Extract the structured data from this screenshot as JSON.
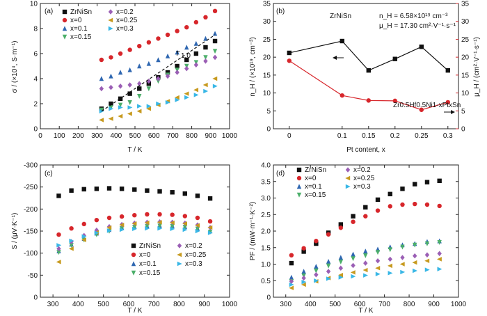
{
  "colors": {
    "ZrNiSn": "#111111",
    "x0": "#d7262b",
    "x01": "#2f67b1",
    "x015": "#4caf6a",
    "x02": "#9b5fb5",
    "x025": "#c79a1f",
    "x03": "#39b7e6",
    "red_axis": "#d7262b"
  },
  "marker_shapes": {
    "ZrNiSn": "square",
    "x0": "circle",
    "x01": "triangle-up",
    "x015": "triangle-down",
    "x02": "diamond",
    "x025": "triangle-left",
    "x03": "triangle-right"
  },
  "chart_data": [
    {
      "panel": "(a)",
      "type": "scatter",
      "ylabel": "σ / (×10⁴, S·m⁻¹)",
      "xlabel": "T / K",
      "xlim": [
        0,
        1000
      ],
      "ylim": [
        0,
        10
      ],
      "xticks": [
        "0",
        "100",
        "200",
        "300",
        "400",
        "500",
        "600",
        "700",
        "800",
        "900",
        "1000"
      ],
      "yticks": [
        "0",
        "2",
        "4",
        "6",
        "8",
        "10"
      ],
      "legend_position": "top-left",
      "annotation": "T",
      "annotation_sub": "1.0",
      "x": [
        323,
        373,
        423,
        473,
        523,
        573,
        623,
        673,
        723,
        773,
        823,
        873,
        923
      ],
      "series": [
        {
          "key": "ZrNiSn",
          "name": "ZrNiSn",
          "values": [
            1.6,
            2.0,
            2.4,
            2.8,
            3.2,
            3.6,
            4.1,
            4.5,
            5.0,
            5.5,
            6.0,
            6.5,
            7.0
          ]
        },
        {
          "key": "x0",
          "name": "x=0",
          "values": [
            5.5,
            5.7,
            6.0,
            6.3,
            6.6,
            6.9,
            7.2,
            7.5,
            7.8,
            8.1,
            8.5,
            8.9,
            9.4
          ]
        },
        {
          "key": "x01",
          "name": "x=0.1",
          "values": [
            4.0,
            4.2,
            4.5,
            4.7,
            5.0,
            5.2,
            5.5,
            5.8,
            6.1,
            6.5,
            6.8,
            7.2,
            7.6
          ]
        },
        {
          "key": "x015",
          "name": "x=0.15",
          "values": [
            1.5,
            1.7,
            1.9,
            2.1,
            2.6,
            3.2,
            3.8,
            4.3,
            4.7,
            5.0,
            5.3,
            5.7,
            6.2
          ]
        },
        {
          "key": "x02",
          "name": "x=0.2",
          "values": [
            3.2,
            3.3,
            3.4,
            3.5,
            3.6,
            3.8,
            4.0,
            4.2,
            4.5,
            4.8,
            5.1,
            5.4,
            5.7
          ]
        },
        {
          "key": "x025",
          "name": "x=0.25",
          "values": [
            0.7,
            0.8,
            1.0,
            1.2,
            1.4,
            1.6,
            1.9,
            2.2,
            2.5,
            2.8,
            3.1,
            3.5,
            4.0
          ]
        },
        {
          "key": "x03",
          "name": "x=0.3",
          "values": [
            1.4,
            1.6,
            1.7,
            1.7,
            1.8,
            1.8,
            2.0,
            2.1,
            2.3,
            2.5,
            2.7,
            3.0,
            3.4
          ]
        }
      ],
      "fit_line": {
        "x": [
          323,
          923
        ],
        "y": [
          1.4,
          7.5
        ]
      }
    },
    {
      "panel": "(b)",
      "type": "line",
      "ylabel": "n_H / (×10¹⁹, cm⁻³)",
      "ylabel_right": "μ_H / (cm²·V⁻¹·s⁻¹)",
      "xlabel": "Pt content, x",
      "xlim": [
        -0.03,
        0.32
      ],
      "ylim": [
        0,
        35
      ],
      "ylim_right": [
        0,
        35
      ],
      "xticks": [
        "0",
        "0.1",
        "0.15",
        "0.2",
        "0.25",
        "0.3"
      ],
      "yticks": [
        "0",
        "5",
        "10",
        "15",
        "20",
        "25",
        "30",
        "35"
      ],
      "categories": [
        0,
        0.1,
        0.15,
        0.2,
        0.25,
        0.3
      ],
      "series": [
        {
          "key": "nH",
          "values": [
            21.2,
            24.5,
            16.3,
            19.5,
            22.9,
            16.3
          ]
        },
        {
          "key": "muH",
          "values": [
            19.0,
            9.3,
            7.9,
            7.8,
            5.3,
            7.4
          ]
        }
      ],
      "reference_lines": {
        "nH": 6.58,
        "muH": 17.3
      },
      "legend_text": {
        "ZrNiSn": "ZrNiSn",
        "nH": "n_H = 6.58×10¹⁹ cm⁻³",
        "muH": "μ_H = 17.30 cm²·V⁻¹·s⁻¹"
      },
      "formula": "Zr0.5Hf0.5Ni1-xPtxSn"
    },
    {
      "panel": "(c)",
      "type": "scatter",
      "ylabel": "S / (μV·K⁻¹)",
      "xlabel": "T / K",
      "xlim": [
        250,
        1000
      ],
      "ylim": [
        0,
        -300
      ],
      "xticks": [
        "300",
        "400",
        "500",
        "600",
        "700",
        "800",
        "900",
        "1000"
      ],
      "yticks": [
        "0",
        "-50",
        "-100",
        "-150",
        "-200",
        "-250",
        "-300"
      ],
      "legend_position": "bottom-right",
      "x": [
        323,
        373,
        423,
        473,
        523,
        573,
        623,
        673,
        723,
        773,
        823,
        873,
        923
      ],
      "series": [
        {
          "key": "ZrNiSn",
          "name": "ZrNiSn",
          "values": [
            -230,
            -242,
            -245,
            -246,
            -247,
            -246,
            -244,
            -242,
            -240,
            -238,
            -235,
            -230,
            -224
          ]
        },
        {
          "key": "x0",
          "name": "x=0",
          "values": [
            -142,
            -156,
            -166,
            -175,
            -180,
            -183,
            -186,
            -188,
            -188,
            -187,
            -184,
            -180,
            -172
          ]
        },
        {
          "key": "x01",
          "name": "x=0.1",
          "values": [
            -105,
            -120,
            -133,
            -145,
            -153,
            -158,
            -160,
            -162,
            -163,
            -162,
            -160,
            -156,
            -150
          ]
        },
        {
          "key": "x015",
          "name": "x=0.15",
          "values": [
            -102,
            -118,
            -130,
            -142,
            -150,
            -156,
            -159,
            -161,
            -162,
            -161,
            -159,
            -155,
            -148
          ]
        },
        {
          "key": "x02",
          "name": "x=0.2",
          "values": [
            -110,
            -126,
            -140,
            -152,
            -160,
            -165,
            -168,
            -170,
            -171,
            -170,
            -168,
            -164,
            -158
          ]
        },
        {
          "key": "x025",
          "name": "x=0.25",
          "values": [
            -80,
            -110,
            -130,
            -147,
            -158,
            -164,
            -167,
            -169,
            -170,
            -169,
            -167,
            -163,
            -158
          ]
        },
        {
          "key": "x03",
          "name": "x=0.3",
          "values": [
            -118,
            -128,
            -138,
            -146,
            -151,
            -153,
            -155,
            -156,
            -156,
            -155,
            -153,
            -150,
            -146
          ]
        }
      ]
    },
    {
      "panel": "(d)",
      "type": "scatter",
      "ylabel": "PF / (mW·m⁻¹·K⁻²)",
      "xlabel": "T / K",
      "xlim": [
        250,
        1000
      ],
      "ylim": [
        0,
        4.0
      ],
      "xticks": [
        "300",
        "400",
        "500",
        "600",
        "700",
        "800",
        "900",
        "1000"
      ],
      "yticks": [
        "0",
        "0.5",
        "1.0",
        "1.5",
        "2.0",
        "2.5",
        "3.0",
        "3.5",
        "4.0"
      ],
      "legend_position": "top-left",
      "x": [
        323,
        373,
        423,
        473,
        523,
        573,
        623,
        673,
        723,
        773,
        823,
        873,
        923
      ],
      "series": [
        {
          "key": "ZrNiSn",
          "name": "ZrNiSn",
          "values": [
            1.03,
            1.38,
            1.62,
            1.95,
            2.2,
            2.45,
            2.72,
            2.95,
            3.12,
            3.28,
            3.42,
            3.48,
            3.52
          ]
        },
        {
          "key": "x0",
          "name": "x=0",
          "values": [
            1.27,
            1.48,
            1.7,
            1.9,
            2.1,
            2.28,
            2.45,
            2.62,
            2.75,
            2.8,
            2.82,
            2.8,
            2.76
          ]
        },
        {
          "key": "x01",
          "name": "x=0.1",
          "values": [
            0.6,
            0.78,
            0.93,
            1.08,
            1.2,
            1.3,
            1.39,
            1.45,
            1.52,
            1.58,
            1.62,
            1.68,
            1.7
          ]
        },
        {
          "key": "x015",
          "name": "x=0.15",
          "values": [
            0.48,
            0.65,
            0.8,
            0.95,
            1.07,
            1.17,
            1.26,
            1.36,
            1.44,
            1.52,
            1.58,
            1.62,
            1.66
          ]
        },
        {
          "key": "x02",
          "name": "x=0.2",
          "values": [
            0.48,
            0.58,
            0.68,
            0.78,
            0.88,
            0.96,
            1.03,
            1.1,
            1.15,
            1.2,
            1.25,
            1.28,
            1.32
          ]
        },
        {
          "key": "x025",
          "name": "x=0.25",
          "values": [
            0.28,
            0.38,
            0.48,
            0.58,
            0.67,
            0.75,
            0.82,
            0.88,
            0.95,
            1.0,
            1.05,
            1.1,
            1.15
          ]
        },
        {
          "key": "x03",
          "name": "x=0.3",
          "values": [
            0.38,
            0.46,
            0.5,
            0.56,
            0.6,
            0.63,
            0.66,
            0.7,
            0.73,
            0.76,
            0.8,
            0.83,
            0.85
          ]
        }
      ]
    }
  ]
}
